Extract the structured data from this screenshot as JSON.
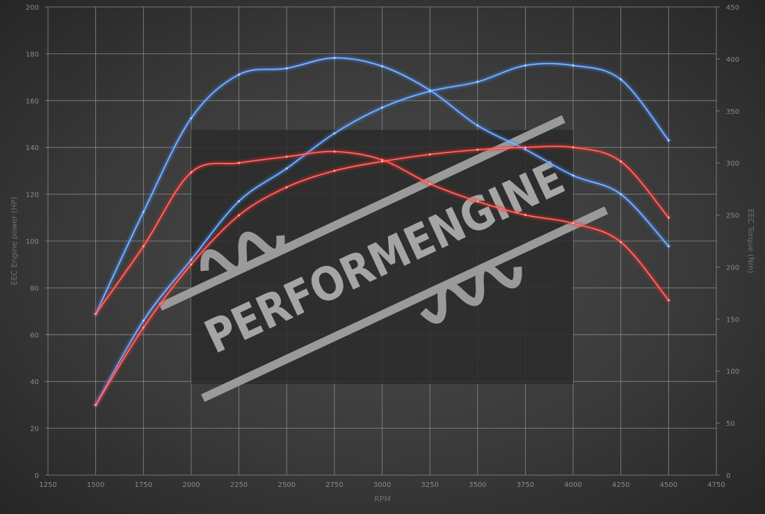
{
  "chart_data": {
    "type": "line",
    "xlabel": "RPM",
    "ylabel_left": "EEC Engine power (HP)",
    "ylabel_right": "EEC Torque (Nm)",
    "xlim": [
      1250,
      4750
    ],
    "ylim_left": [
      0,
      200
    ],
    "ylim_right": [
      0,
      450
    ],
    "x_ticks": [
      1250,
      1500,
      1750,
      2000,
      2250,
      2500,
      2750,
      3000,
      3250,
      3500,
      3750,
      4000,
      4250,
      4500,
      4750
    ],
    "y_left_ticks": [
      0,
      20,
      40,
      60,
      80,
      100,
      120,
      140,
      160,
      180,
      200
    ],
    "y_right_ticks": [
      0,
      50,
      100,
      150,
      200,
      250,
      300,
      350,
      400,
      450
    ],
    "grid": true,
    "x": [
      1500,
      1750,
      2000,
      2250,
      2500,
      2750,
      3000,
      3250,
      3500,
      3750,
      4000,
      4250,
      4500
    ],
    "series": [
      {
        "axis": "right",
        "color": "#3f8fff",
        "values": [
          155,
          253,
          343,
          385,
          391,
          401,
          393,
          370,
          336,
          313,
          288,
          270,
          220
        ]
      },
      {
        "axis": "left",
        "color": "#3f8fff",
        "values": [
          30,
          66,
          92,
          117,
          131,
          146,
          157,
          164,
          168,
          175,
          175,
          169,
          143
        ]
      },
      {
        "axis": "right",
        "color": "#ff2a2a",
        "values": [
          155,
          220,
          291,
          300,
          306,
          311,
          303,
          280,
          263,
          250,
          242,
          224,
          168
        ]
      },
      {
        "axis": "left",
        "color": "#ff2a2a",
        "values": [
          30,
          63,
          90,
          111,
          123,
          130,
          134,
          137,
          139,
          140,
          140,
          134,
          110
        ]
      }
    ]
  },
  "watermark": {
    "text": "PERFORMENGINE"
  }
}
